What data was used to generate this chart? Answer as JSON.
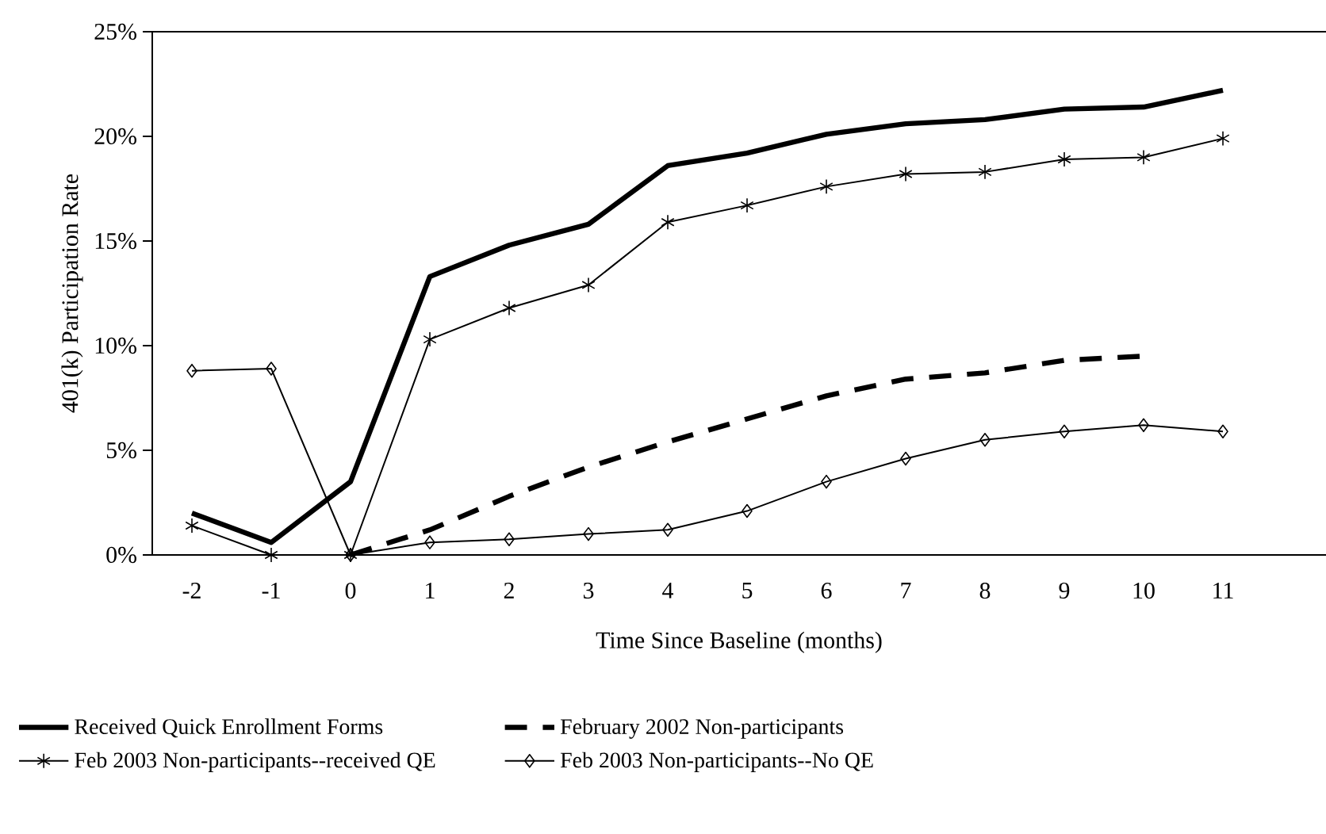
{
  "chart_data": {
    "type": "line",
    "xlabel": "Time Since Baseline (months)",
    "ylabel": "401(k) Participation Rate",
    "categories": [
      "-2",
      "-1",
      "0",
      "1",
      "2",
      "3",
      "4",
      "5",
      "6",
      "7",
      "8",
      "9",
      "10",
      "11",
      null
    ],
    "ylim": [
      0,
      25
    ],
    "yticks": [
      {
        "value": 0,
        "label": "0%"
      },
      {
        "value": 5,
        "label": "5%"
      },
      {
        "value": 10,
        "label": "10%"
      },
      {
        "value": 15,
        "label": "15%"
      },
      {
        "value": 20,
        "label": "20%"
      },
      {
        "value": 25,
        "label": "25%"
      }
    ],
    "grid": false,
    "legend": "bottom",
    "series": [
      {
        "name": "Received Quick Enrollment Forms",
        "color": "#000000",
        "marker": "none",
        "line_style": "solid",
        "values": [
          2.0,
          0.6,
          3.5,
          13.3,
          14.8,
          15.8,
          18.6,
          19.2,
          20.1,
          20.6,
          20.8,
          21.3,
          21.4,
          22.2,
          null
        ]
      },
      {
        "name": "February 2002 Non-participants",
        "color": "#000000",
        "marker": "none",
        "line_style": "dashed",
        "values": [
          null,
          null,
          0,
          1.2,
          2.8,
          4.2,
          5.4,
          6.5,
          7.6,
          8.4,
          8.7,
          9.3,
          9.5,
          null,
          null
        ]
      },
      {
        "name": "Feb 2003 Non-participants--received QE",
        "color": "#000000",
        "marker": "cross",
        "line_style": "solid",
        "values": [
          1.4,
          0,
          0,
          10.3,
          11.8,
          12.9,
          15.9,
          16.7,
          17.6,
          18.2,
          18.3,
          18.9,
          19.0,
          19.9,
          null
        ]
      },
      {
        "name": "Feb 2003 Non-participants--No QE",
        "color": "#000000",
        "marker": "diamond",
        "line_style": "solid",
        "values": [
          8.8,
          8.9,
          0,
          0.6,
          0.75,
          1.0,
          1.2,
          2.1,
          3.5,
          4.6,
          5.5,
          5.9,
          6.2,
          5.9,
          null
        ]
      }
    ]
  }
}
